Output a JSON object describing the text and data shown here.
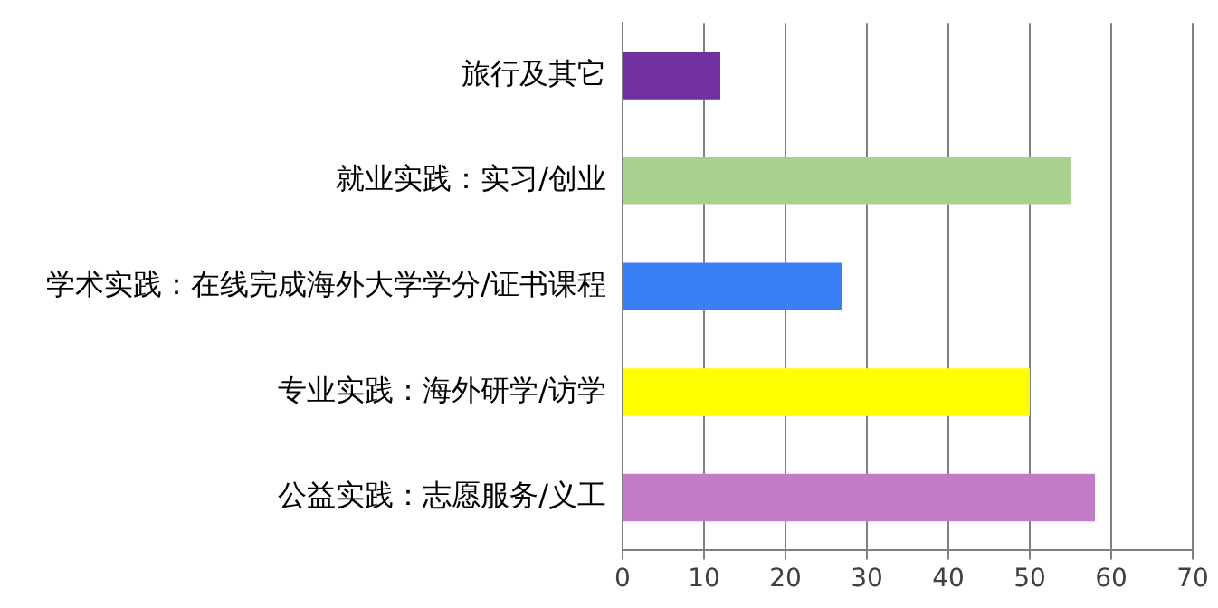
{
  "chart_data": {
    "type": "bar",
    "orientation": "horizontal",
    "categories": [
      "旅行及其它",
      "就业实践：实习/创业",
      "学术实践：在线完成海外大学学分/证书课程",
      "专业实践：海外研学/访学",
      "公益实践：志愿服务/义工"
    ],
    "values": [
      12,
      55,
      27,
      50,
      58
    ],
    "colors": [
      "#7030a0",
      "#a9d18e",
      "#3a7ff6",
      "#ffff00",
      "#c27bc6"
    ],
    "xlim": [
      0,
      70
    ],
    "xticks": [
      0,
      10,
      20,
      30,
      40,
      50,
      60,
      70
    ],
    "grid": "x",
    "legend": false
  }
}
